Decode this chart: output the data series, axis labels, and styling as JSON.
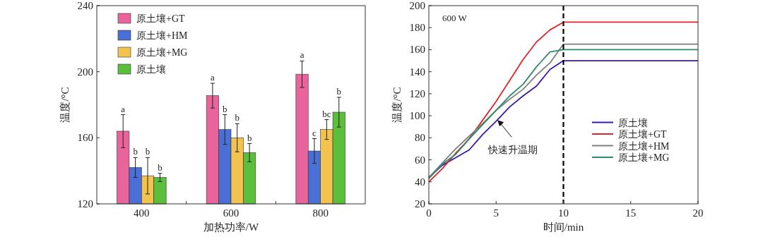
{
  "chart_data": [
    {
      "type": "bar",
      "categories": [
        "400",
        "600",
        "800"
      ],
      "xlabel": "加热功率/W",
      "ylabel": "温度/°C",
      "ylim": [
        120,
        240
      ],
      "yticks": [
        120,
        160,
        200,
        240
      ],
      "legend": "top left",
      "series": [
        {
          "name": "原土壤+GT",
          "color": "#e8649a",
          "values": [
            164,
            185.5,
            198.5
          ],
          "errors": [
            10,
            7.5,
            8
          ],
          "value_labels": [
            "a",
            "a",
            "a"
          ]
        },
        {
          "name": "原土壤+HM",
          "color": "#4a6fd6",
          "values": [
            142,
            165,
            152
          ],
          "errors": [
            6,
            9,
            7.5
          ],
          "value_labels": [
            "b",
            "b",
            "c"
          ]
        },
        {
          "name": "原土壤+MG",
          "color": "#f2c34e",
          "values": [
            137,
            160,
            165
          ],
          "errors": [
            11,
            8.5,
            6
          ],
          "value_labels": [
            "b",
            "b",
            "bc"
          ]
        },
        {
          "name": "原土壤",
          "color": "#5cbf3c",
          "values": [
            136,
            151,
            175.5
          ],
          "errors": [
            2.5,
            5.5,
            9
          ],
          "value_labels": [
            "b",
            "b",
            "b"
          ]
        }
      ]
    },
    {
      "type": "line",
      "x": [
        0,
        1,
        2,
        3,
        4,
        5,
        6,
        7,
        8,
        9,
        10,
        20
      ],
      "xlabel": "时间/min",
      "ylabel": "温度/°C",
      "xlim": [
        0,
        20
      ],
      "xticks": [
        0,
        5,
        10,
        15,
        20
      ],
      "ylim": [
        20,
        200
      ],
      "yticks": [
        20,
        40,
        60,
        80,
        100,
        120,
        140,
        160,
        180,
        200
      ],
      "legend": "bottom right",
      "ref_lines": [
        {
          "axis": "x",
          "value": 10,
          "color": "#000000",
          "line_style": "dashed"
        }
      ],
      "annotations": [
        "600 W",
        {
          "text": "快速升温期",
          "x": 5.1,
          "y": 96
        }
      ],
      "series": [
        {
          "name": "原土壤",
          "color": "#3a18b0",
          "values": [
            44,
            55,
            62,
            69,
            83,
            95,
            108,
            118,
            127,
            142,
            150,
            150
          ]
        },
        {
          "name": "原土壤+GT",
          "color": "#e0242c",
          "values": [
            40,
            52,
            66,
            79,
            96,
            113,
            132,
            151,
            167,
            178,
            185,
            185
          ]
        },
        {
          "name": "原土壤+HM",
          "color": "#808080",
          "values": [
            44,
            57,
            70,
            81.5,
            93,
            105,
            115,
            124,
            137,
            148,
            165,
            165
          ]
        },
        {
          "name": "原土壤+MG",
          "color": "#2e8a68",
          "values": [
            43,
            56,
            65,
            79,
            92,
            105,
            118,
            128.5,
            144.5,
            158,
            160,
            160
          ]
        }
      ]
    }
  ]
}
